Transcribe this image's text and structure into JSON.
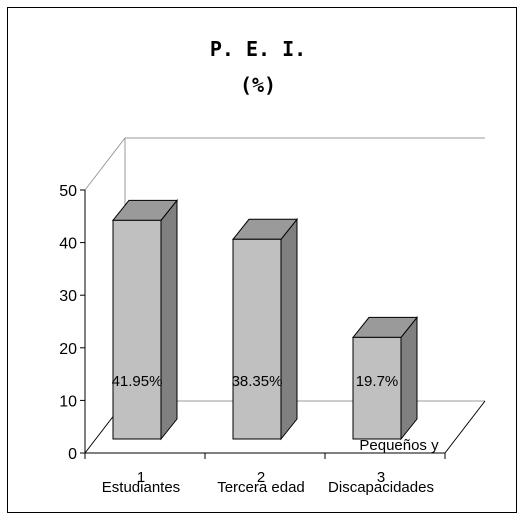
{
  "chart_data": {
    "type": "bar",
    "title": "P. E. I.",
    "subtitle": "(%)",
    "x_indices": [
      "1",
      "2",
      "3"
    ],
    "categories": [
      "Estudiantes",
      "Tercera edad",
      "Pequeños y Discapacidades"
    ],
    "category_lines": [
      [
        "Estudiantes"
      ],
      [
        "Tercera edad"
      ],
      [
        "Pequeños y",
        "Discapacidades"
      ]
    ],
    "values": [
      41.95,
      38.35,
      19.7
    ],
    "data_labels": [
      "41.95%",
      "38.35%",
      "19.7%"
    ],
    "ylim": [
      0,
      50
    ],
    "yticks": [
      "0",
      "10",
      "20",
      "30",
      "40",
      "50"
    ],
    "grid": false,
    "legend": "none",
    "colors": {
      "bar_front": "#c0c0c0",
      "bar_side": "#808080",
      "bar_top": "#9a9a9a"
    }
  }
}
